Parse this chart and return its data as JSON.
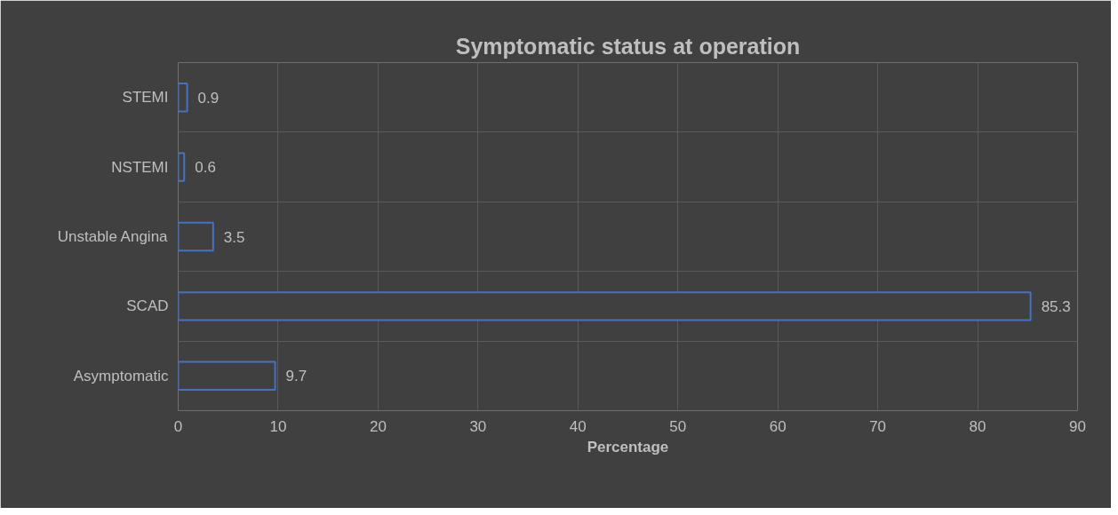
{
  "chart_data": {
    "type": "bar",
    "orientation": "horizontal",
    "title": "Symptomatic status at operation",
    "xlabel": "Percentage",
    "categories": [
      "STEMI",
      "NSTEMI",
      "Unstable Angina",
      "SCAD",
      "Asymptomatic"
    ],
    "values": [
      0.9,
      0.6,
      3.5,
      85.3,
      9.7
    ],
    "color": "#4472c4",
    "xlim": [
      0,
      90
    ],
    "xticks": [
      0,
      10,
      20,
      30,
      40,
      50,
      60,
      70,
      80,
      90
    ],
    "grid": true,
    "data_labels": true
  }
}
